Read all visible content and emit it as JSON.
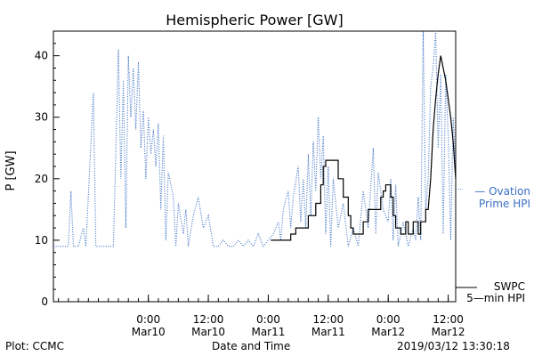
{
  "chart_data": {
    "type": "line",
    "title": "Hemispheric Power [GW]",
    "ylabel": "P [GW]",
    "xlabel": "Date and Time",
    "ylim": [
      0,
      44
    ],
    "yticks": [
      0,
      10,
      20,
      30,
      40
    ],
    "x_start": "2019-03-09 05:00",
    "x_end": "2019-03-12 13:30",
    "xtick_labels": [
      {
        "t": "2019-03-10 00:00",
        "line1": "0:00",
        "line2": "Mar10"
      },
      {
        "t": "2019-03-10 12:00",
        "line1": "12:00",
        "line2": "Mar10"
      },
      {
        "t": "2019-03-11 00:00",
        "line1": "0:00",
        "line2": "Mar11"
      },
      {
        "t": "2019-03-11 12:00",
        "line1": "12:00",
        "line2": "Mar11"
      },
      {
        "t": "2019-03-12 00:00",
        "line1": "0:00",
        "line2": "Mar12"
      },
      {
        "t": "2019-03-12 12:00",
        "line1": "12:00",
        "line2": "Mar12"
      }
    ],
    "series": [
      {
        "name": "Ovation Prime HPI",
        "label_lines": [
          "— Ovation",
          "Prime HPI"
        ],
        "color": "#3a6fc4",
        "style": "dotted",
        "points": [
          [
            "2019-03-09 05:00",
            9
          ],
          [
            "2019-03-09 08:00",
            9
          ],
          [
            "2019-03-09 08:30",
            18
          ],
          [
            "2019-03-09 09:00",
            9
          ],
          [
            "2019-03-09 10:00",
            9
          ],
          [
            "2019-03-09 11:00",
            12
          ],
          [
            "2019-03-09 11:30",
            9
          ],
          [
            "2019-03-09 13:00",
            34
          ],
          [
            "2019-03-09 13:30",
            9
          ],
          [
            "2019-03-09 15:00",
            9
          ],
          [
            "2019-03-09 17:00",
            9
          ],
          [
            "2019-03-09 18:00",
            41
          ],
          [
            "2019-03-09 18:30",
            20
          ],
          [
            "2019-03-09 19:00",
            36
          ],
          [
            "2019-03-09 19:30",
            12
          ],
          [
            "2019-03-09 20:00",
            40
          ],
          [
            "2019-03-09 20:30",
            30
          ],
          [
            "2019-03-09 21:00",
            38
          ],
          [
            "2019-03-09 21:30",
            28
          ],
          [
            "2019-03-09 22:00",
            39
          ],
          [
            "2019-03-09 22:30",
            25
          ],
          [
            "2019-03-09 23:00",
            31
          ],
          [
            "2019-03-09 23:30",
            20
          ],
          [
            "2019-03-10 00:00",
            30
          ],
          [
            "2019-03-10 00:30",
            24
          ],
          [
            "2019-03-10 01:00",
            28
          ],
          [
            "2019-03-10 01:30",
            22
          ],
          [
            "2019-03-10 02:00",
            29
          ],
          [
            "2019-03-10 02:30",
            15
          ],
          [
            "2019-03-10 03:00",
            27
          ],
          [
            "2019-03-10 03:30",
            10
          ],
          [
            "2019-03-10 04:00",
            21
          ],
          [
            "2019-03-10 05:00",
            17
          ],
          [
            "2019-03-10 05:30",
            9
          ],
          [
            "2019-03-10 06:00",
            16
          ],
          [
            "2019-03-10 07:00",
            11
          ],
          [
            "2019-03-10 07:30",
            15
          ],
          [
            "2019-03-10 08:00",
            9
          ],
          [
            "2019-03-10 09:00",
            14
          ],
          [
            "2019-03-10 10:00",
            17
          ],
          [
            "2019-03-10 11:00",
            12
          ],
          [
            "2019-03-10 12:00",
            14
          ],
          [
            "2019-03-10 13:00",
            9
          ],
          [
            "2019-03-10 14:00",
            9
          ],
          [
            "2019-03-10 15:00",
            10
          ],
          [
            "2019-03-10 16:00",
            9
          ],
          [
            "2019-03-10 17:00",
            9
          ],
          [
            "2019-03-10 18:00",
            10
          ],
          [
            "2019-03-10 19:00",
            9
          ],
          [
            "2019-03-10 20:00",
            10
          ],
          [
            "2019-03-10 21:00",
            9
          ],
          [
            "2019-03-10 22:00",
            11
          ],
          [
            "2019-03-10 23:00",
            9
          ],
          [
            "2019-03-11 00:00",
            10
          ],
          [
            "2019-03-11 01:00",
            11
          ],
          [
            "2019-03-11 02:00",
            13
          ],
          [
            "2019-03-11 02:30",
            10
          ],
          [
            "2019-03-11 03:00",
            15
          ],
          [
            "2019-03-11 04:00",
            18
          ],
          [
            "2019-03-11 04:30",
            12
          ],
          [
            "2019-03-11 05:00",
            17
          ],
          [
            "2019-03-11 06:00",
            22
          ],
          [
            "2019-03-11 06:30",
            13
          ],
          [
            "2019-03-11 07:00",
            20
          ],
          [
            "2019-03-11 07:30",
            12
          ],
          [
            "2019-03-11 08:00",
            24
          ],
          [
            "2019-03-11 08:30",
            14
          ],
          [
            "2019-03-11 09:00",
            26
          ],
          [
            "2019-03-11 09:30",
            18
          ],
          [
            "2019-03-11 10:00",
            30
          ],
          [
            "2019-03-11 10:30",
            20
          ],
          [
            "2019-03-11 11:00",
            27
          ],
          [
            "2019-03-11 11:30",
            11
          ],
          [
            "2019-03-11 12:00",
            22
          ],
          [
            "2019-03-11 12:30",
            9
          ],
          [
            "2019-03-11 13:00",
            20
          ],
          [
            "2019-03-11 14:00",
            12
          ],
          [
            "2019-03-11 15:00",
            16
          ],
          [
            "2019-03-11 16:00",
            9
          ],
          [
            "2019-03-11 17:00",
            12
          ],
          [
            "2019-03-11 18:00",
            9
          ],
          [
            "2019-03-11 19:00",
            18
          ],
          [
            "2019-03-11 20:00",
            12
          ],
          [
            "2019-03-11 21:00",
            25
          ],
          [
            "2019-03-11 21:30",
            11
          ],
          [
            "2019-03-11 22:00",
            21
          ],
          [
            "2019-03-11 23:00",
            15
          ],
          [
            "2019-03-12 00:00",
            13
          ],
          [
            "2019-03-12 00:30",
            20
          ],
          [
            "2019-03-12 01:00",
            10
          ],
          [
            "2019-03-12 01:30",
            19
          ],
          [
            "2019-03-12 02:00",
            9
          ],
          [
            "2019-03-12 03:00",
            13
          ],
          [
            "2019-03-12 04:00",
            9
          ],
          [
            "2019-03-12 05:00",
            12
          ],
          [
            "2019-03-12 05:30",
            10
          ],
          [
            "2019-03-12 06:00",
            17
          ],
          [
            "2019-03-12 06:30",
            10
          ],
          [
            "2019-03-12 07:00",
            44
          ],
          [
            "2019-03-12 07:30",
            15
          ],
          [
            "2019-03-12 08:00",
            20
          ],
          [
            "2019-03-12 08:30",
            35
          ],
          [
            "2019-03-12 09:00",
            38
          ],
          [
            "2019-03-12 09:30",
            44
          ],
          [
            "2019-03-12 10:00",
            25
          ],
          [
            "2019-03-12 10:30",
            37
          ],
          [
            "2019-03-12 11:00",
            11
          ],
          [
            "2019-03-12 11:30",
            37
          ],
          [
            "2019-03-12 12:00",
            27
          ],
          [
            "2019-03-12 12:30",
            10
          ],
          [
            "2019-03-12 13:00",
            30
          ],
          [
            "2019-03-12 13:30",
            22
          ]
        ]
      },
      {
        "name": "SWPC 5-min HPI",
        "label_lines": [
          "SWPC",
          "5—min HPI"
        ],
        "color": "#000000",
        "style": "solid",
        "points": [
          [
            "2019-03-11 00:30",
            10
          ],
          [
            "2019-03-11 04:30",
            10
          ],
          [
            "2019-03-11 04:30",
            11
          ],
          [
            "2019-03-11 05:30",
            11
          ],
          [
            "2019-03-11 05:30",
            12
          ],
          [
            "2019-03-11 08:00",
            12
          ],
          [
            "2019-03-11 08:00",
            14
          ],
          [
            "2019-03-11 09:30",
            14
          ],
          [
            "2019-03-11 09:30",
            16
          ],
          [
            "2019-03-11 10:30",
            16
          ],
          [
            "2019-03-11 10:30",
            19
          ],
          [
            "2019-03-11 11:00",
            19
          ],
          [
            "2019-03-11 11:00",
            22
          ],
          [
            "2019-03-11 11:30",
            22
          ],
          [
            "2019-03-11 11:30",
            23
          ],
          [
            "2019-03-11 14:00",
            23
          ],
          [
            "2019-03-11 14:00",
            20
          ],
          [
            "2019-03-11 15:00",
            20
          ],
          [
            "2019-03-11 15:00",
            17
          ],
          [
            "2019-03-11 16:00",
            17
          ],
          [
            "2019-03-11 16:00",
            14
          ],
          [
            "2019-03-11 16:30",
            14
          ],
          [
            "2019-03-11 16:30",
            12
          ],
          [
            "2019-03-11 17:00",
            12
          ],
          [
            "2019-03-11 17:00",
            11
          ],
          [
            "2019-03-11 19:00",
            11
          ],
          [
            "2019-03-11 19:00",
            13
          ],
          [
            "2019-03-11 20:00",
            13
          ],
          [
            "2019-03-11 20:00",
            15
          ],
          [
            "2019-03-11 22:30",
            15
          ],
          [
            "2019-03-11 22:30",
            17
          ],
          [
            "2019-03-11 23:00",
            17
          ],
          [
            "2019-03-11 23:00",
            18
          ],
          [
            "2019-03-11 23:30",
            18
          ],
          [
            "2019-03-11 23:30",
            19
          ],
          [
            "2019-03-12 00:30",
            19
          ],
          [
            "2019-03-12 00:30",
            17
          ],
          [
            "2019-03-12 01:00",
            17
          ],
          [
            "2019-03-12 01:00",
            14
          ],
          [
            "2019-03-12 01:30",
            14
          ],
          [
            "2019-03-12 01:30",
            12
          ],
          [
            "2019-03-12 02:30",
            12
          ],
          [
            "2019-03-12 02:30",
            11
          ],
          [
            "2019-03-12 03:30",
            11
          ],
          [
            "2019-03-12 03:30",
            13
          ],
          [
            "2019-03-12 04:00",
            13
          ],
          [
            "2019-03-12 04:00",
            11
          ],
          [
            "2019-03-12 05:00",
            11
          ],
          [
            "2019-03-12 05:00",
            13
          ],
          [
            "2019-03-12 06:00",
            13
          ],
          [
            "2019-03-12 06:00",
            11
          ],
          [
            "2019-03-12 06:30",
            11
          ],
          [
            "2019-03-12 06:30",
            13
          ],
          [
            "2019-03-12 07:30",
            13
          ],
          [
            "2019-03-12 07:30",
            15
          ],
          [
            "2019-03-12 08:00",
            15
          ],
          [
            "2019-03-12 08:30",
            20
          ],
          [
            "2019-03-12 09:00",
            28
          ],
          [
            "2019-03-12 09:30",
            33
          ],
          [
            "2019-03-12 10:00",
            37
          ],
          [
            "2019-03-12 10:30",
            40
          ],
          [
            "2019-03-12 11:00",
            38
          ],
          [
            "2019-03-12 11:30",
            36
          ],
          [
            "2019-03-12 12:00",
            33
          ],
          [
            "2019-03-12 12:30",
            30
          ],
          [
            "2019-03-12 13:00",
            26
          ],
          [
            "2019-03-12 13:30",
            20
          ]
        ]
      }
    ]
  },
  "footer": {
    "plot_credit": "Plot: CCMC",
    "timestamp": "2019/03/12 13:30:18"
  }
}
